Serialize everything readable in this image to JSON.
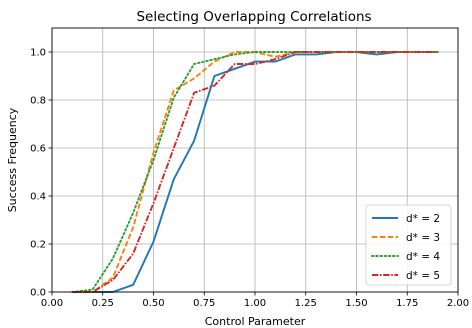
{
  "chart_data": {
    "type": "line",
    "title": "Selecting Overlapping Correlations",
    "xlabel": "Control Parameter",
    "ylabel": "Success Frequency",
    "xlim": [
      0.0,
      2.0
    ],
    "ylim": [
      0.0,
      1.1
    ],
    "xticks": [
      0.0,
      0.25,
      0.5,
      0.75,
      1.0,
      1.25,
      1.5,
      1.75,
      2.0
    ],
    "xtick_labels": [
      "0.00",
      "0.25",
      "0.50",
      "0.75",
      "1.00",
      "1.25",
      "1.50",
      "1.75",
      "2.00"
    ],
    "yticks": [
      0.0,
      0.2,
      0.4,
      0.6,
      0.8,
      1.0
    ],
    "ytick_labels": [
      "0.0",
      "0.2",
      "0.4",
      "0.6",
      "0.8",
      "1.0"
    ],
    "grid": true,
    "legend_position": "lower-right",
    "series": [
      {
        "name": "d* = 2",
        "color": "#1f77b4",
        "style": "solid",
        "x": [
          0.1,
          0.2,
          0.3,
          0.4,
          0.5,
          0.6,
          0.7,
          0.8,
          0.9,
          1.0,
          1.1,
          1.2,
          1.3,
          1.4,
          1.5,
          1.6,
          1.7,
          1.8,
          1.9
        ],
        "y": [
          0.0,
          0.0,
          0.0,
          0.03,
          0.21,
          0.47,
          0.63,
          0.9,
          0.93,
          0.96,
          0.96,
          0.99,
          0.99,
          1.0,
          1.0,
          0.99,
          1.0,
          1.0,
          1.0
        ]
      },
      {
        "name": "d* = 3",
        "color": "#ff7f0e",
        "style": "dashed",
        "x": [
          0.1,
          0.2,
          0.3,
          0.4,
          0.5,
          0.6,
          0.7,
          0.8,
          0.9,
          1.0,
          1.1,
          1.2,
          1.3,
          1.4,
          1.5,
          1.6,
          1.7,
          1.8,
          1.9
        ],
        "y": [
          0.0,
          0.0,
          0.06,
          0.27,
          0.58,
          0.84,
          0.89,
          0.96,
          1.0,
          1.0,
          0.98,
          1.0,
          1.0,
          1.0,
          1.0,
          1.0,
          1.0,
          1.0,
          1.0
        ]
      },
      {
        "name": "d* = 4",
        "color": "#2ca02c",
        "style": "dotted",
        "x": [
          0.1,
          0.2,
          0.3,
          0.4,
          0.5,
          0.6,
          0.7,
          0.8,
          0.9,
          1.0,
          1.1,
          1.2,
          1.3,
          1.4,
          1.5,
          1.6,
          1.7,
          1.8,
          1.9
        ],
        "y": [
          0.0,
          0.01,
          0.14,
          0.33,
          0.55,
          0.81,
          0.95,
          0.97,
          0.99,
          1.0,
          1.0,
          1.0,
          1.0,
          1.0,
          1.0,
          1.0,
          1.0,
          1.0,
          1.0
        ]
      },
      {
        "name": "d* = 5",
        "color": "#d62728",
        "style": "dashdot",
        "x": [
          0.1,
          0.2,
          0.3,
          0.4,
          0.5,
          0.6,
          0.7,
          0.8,
          0.9,
          1.0,
          1.1,
          1.2,
          1.3,
          1.4,
          1.5,
          1.6,
          1.7,
          1.8,
          1.9
        ],
        "y": [
          0.0,
          0.0,
          0.05,
          0.16,
          0.37,
          0.6,
          0.83,
          0.86,
          0.95,
          0.95,
          0.97,
          1.0,
          1.0,
          1.0,
          1.0,
          1.0,
          1.0,
          1.0,
          1.0
        ]
      }
    ]
  }
}
